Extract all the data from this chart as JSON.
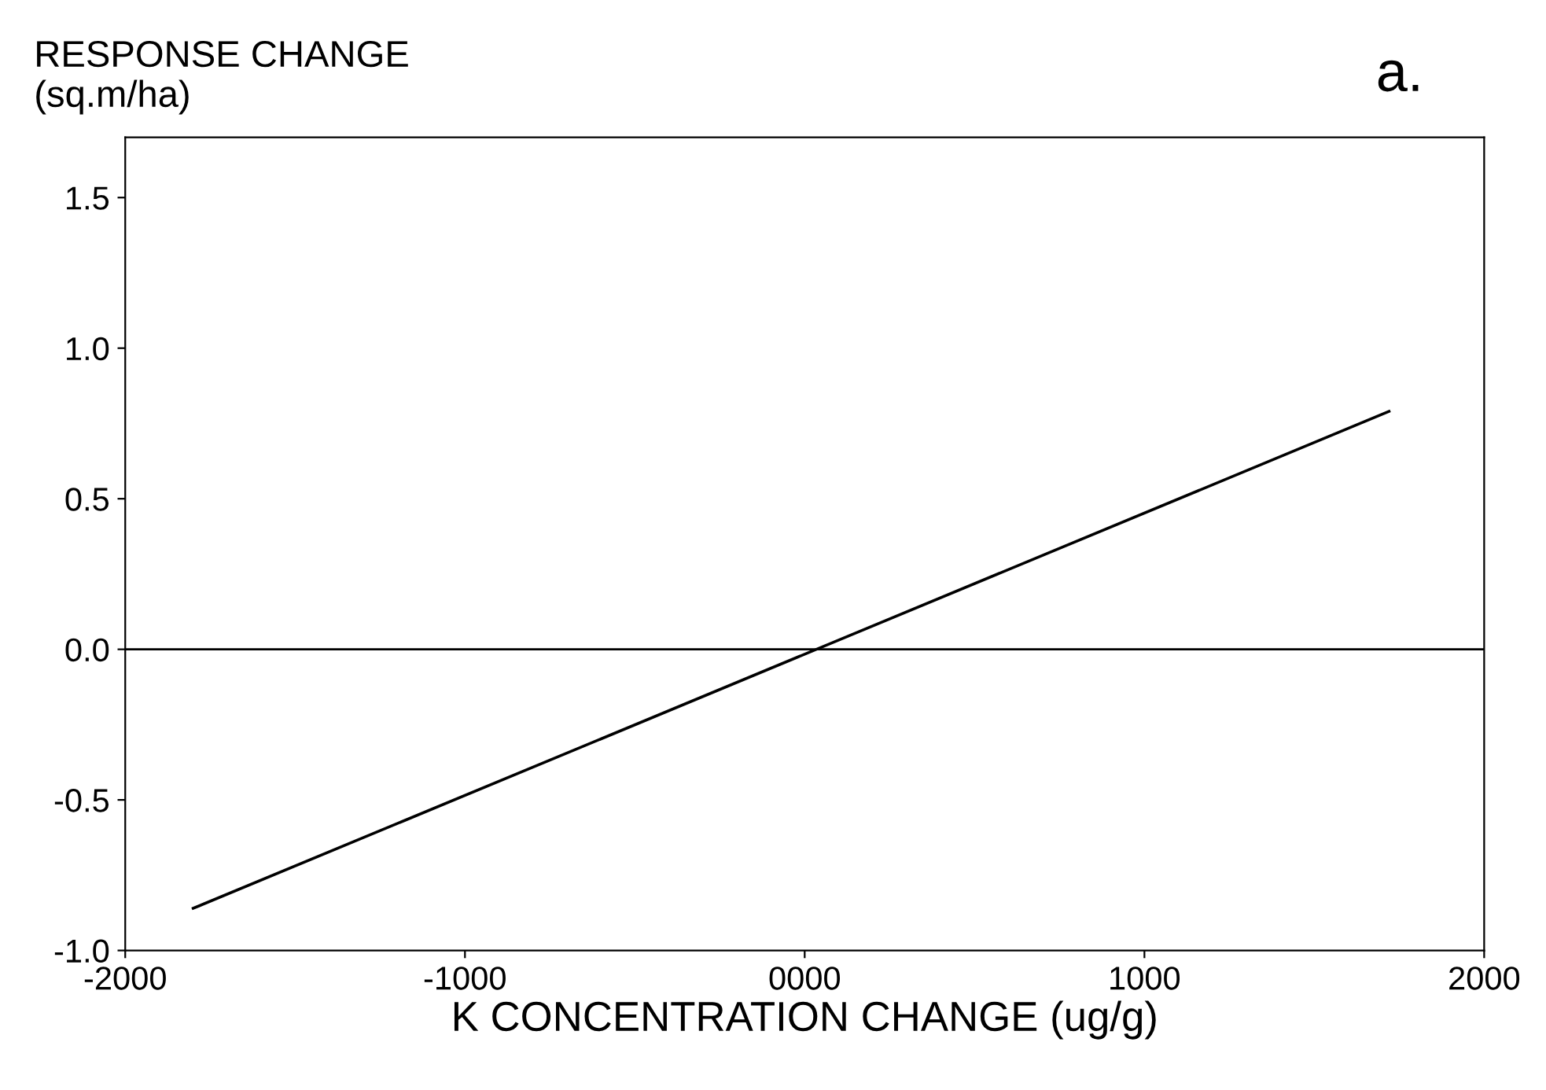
{
  "chart_data": {
    "type": "line",
    "ylabel": "RESPONSE CHANGE\n(sq.m/ha)",
    "xlabel": "K CONCENTRATION CHANGE (ug/g)",
    "annotations": [
      "a."
    ],
    "x": [
      -1800,
      1720
    ],
    "series": [
      {
        "color": "#000000",
        "values": [
          -0.86,
          0.79
        ]
      }
    ],
    "xlim": [
      -2000,
      2000
    ],
    "xticks": [
      -2000,
      -1000,
      {
        "value": 0,
        "label": "0000"
      },
      1000,
      2000
    ],
    "ylim": [
      -1.0,
      1.7
    ],
    "yticks": [
      {
        "value": -1,
        "label": "-1.0"
      },
      -0.5,
      {
        "value": 0,
        "label": "0.0"
      },
      0.5,
      {
        "value": 1,
        "label": "1.0"
      },
      1.5
    ],
    "ref_lines": [
      {
        "axis": "y",
        "value": 0,
        "color": "#000000"
      }
    ],
    "grid": false,
    "marker": "none",
    "line_style": "solid"
  }
}
